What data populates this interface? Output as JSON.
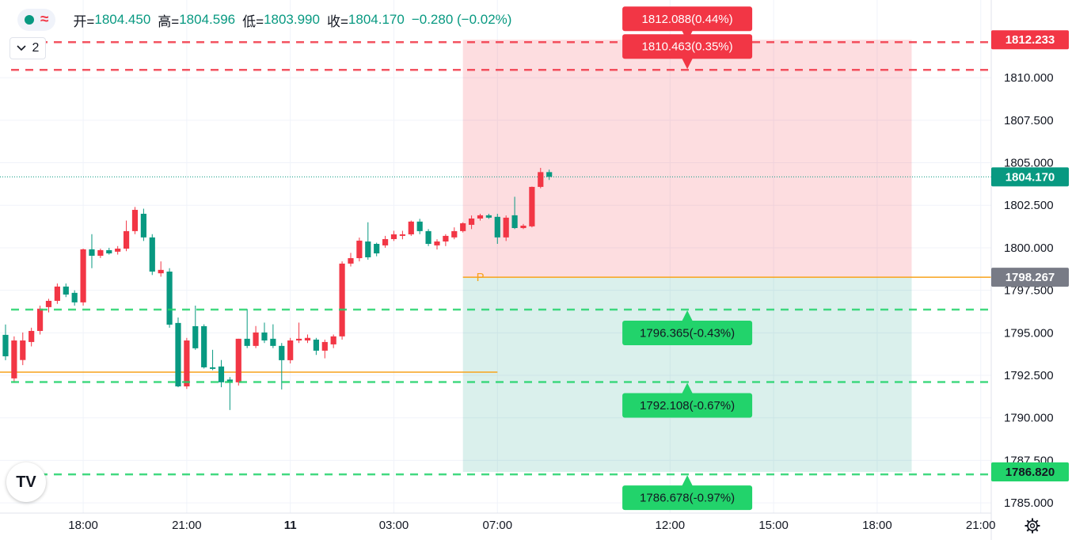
{
  "chart_data": {
    "type": "candlestick",
    "open": [
      1794.88,
      1792.32,
      1793.4,
      1794.46,
      1795.11,
      1796.51,
      1796.88,
      1797.72,
      1797.35,
      1796.79,
      1799.91,
      1799.53,
      1799.86,
      1799.77,
      1799.95,
      1800.98,
      1802.0,
      1800.61,
      1798.5,
      1798.6,
      1795.58,
      1791.85,
      1795.39,
      1795.39,
      1792.97,
      1793.02,
      1792.25,
      1792.09,
      1794.65,
      1794.23,
      1795.02,
      1794.65,
      1794.23,
      1793.39,
      1794.55,
      1794.55,
      1794.6,
      1793.95,
      1794.32,
      1794.79,
      1799.07,
      1799.39,
      1800.37,
      1800.23,
      1800.14,
      1800.51,
      1800.7,
      1800.79,
      1801.54,
      1800.98,
      1800.14,
      1800.37,
      1800.61,
      1800.98,
      1801.35,
      1801.72,
      1801.91,
      1801.82,
      1800.61,
      1801.91,
      1801.16,
      1801.26,
      1803.58,
      1804.45
    ],
    "high": [
      1795.49,
      1794.79,
      1795.02,
      1795.3,
      1796.6,
      1797.0,
      1797.9,
      1797.9,
      1797.5,
      1799.95,
      1800.8,
      1799.95,
      1800.0,
      1800.1,
      1801.6,
      1802.4,
      1802.3,
      1800.8,
      1799.2,
      1798.8,
      1795.9,
      1794.7,
      1796.6,
      1795.5,
      1794.0,
      1793.4,
      1792.4,
      1794.65,
      1796.4,
      1795.4,
      1795.6,
      1795.5,
      1794.4,
      1794.7,
      1795.6,
      1794.9,
      1794.7,
      1794.6,
      1794.9,
      1799.2,
      1799.7,
      1800.6,
      1801.5,
      1800.3,
      1800.7,
      1801.0,
      1801.0,
      1801.6,
      1801.7,
      1801.1,
      1800.5,
      1800.8,
      1801.2,
      1801.5,
      1801.9,
      1802.0,
      1802.0,
      1802.0,
      1801.9,
      1803.0,
      1801.4,
      1803.6,
      1804.7,
      1804.596
    ],
    "low": [
      1793.39,
      1792.09,
      1793.1,
      1794.2,
      1794.9,
      1796.2,
      1796.7,
      1797.1,
      1796.6,
      1796.6,
      1798.8,
      1799.4,
      1799.6,
      1799.6,
      1799.8,
      1800.8,
      1800.4,
      1798.4,
      1798.3,
      1795.3,
      1791.8,
      1791.7,
      1794.0,
      1792.9,
      1792.8,
      1791.8,
      1790.46,
      1791.9,
      1794.1,
      1794.1,
      1794.4,
      1794.1,
      1791.67,
      1793.2,
      1794.4,
      1794.4,
      1793.7,
      1793.5,
      1794.1,
      1794.6,
      1798.9,
      1799.2,
      1799.3,
      1799.5,
      1800.0,
      1800.4,
      1800.5,
      1800.7,
      1800.8,
      1800.1,
      1799.9,
      1800.1,
      1800.5,
      1800.9,
      1801.1,
      1801.6,
      1801.7,
      1800.23,
      1800.4,
      1801.1,
      1801.1,
      1801.2,
      1803.5,
      1803.99
    ],
    "close": [
      1793.62,
      1794.55,
      1794.55,
      1795.11,
      1796.42,
      1796.88,
      1797.72,
      1797.25,
      1796.79,
      1799.91,
      1799.53,
      1799.86,
      1799.67,
      1799.95,
      1800.98,
      1802.23,
      1800.61,
      1798.6,
      1798.7,
      1795.48,
      1791.85,
      1794.55,
      1794.09,
      1792.97,
      1792.88,
      1792.09,
      1792.09,
      1794.65,
      1794.23,
      1795.02,
      1794.55,
      1794.23,
      1793.39,
      1794.55,
      1794.65,
      1794.7,
      1793.95,
      1794.46,
      1794.79,
      1799.07,
      1799.39,
      1800.42,
      1799.44,
      1799.67,
      1800.51,
      1800.79,
      1800.79,
      1801.54,
      1800.98,
      1800.23,
      1800.37,
      1800.7,
      1800.98,
      1801.44,
      1801.72,
      1801.91,
      1801.77,
      1800.61,
      1801.77,
      1801.16,
      1801.3,
      1803.58,
      1804.45,
      1804.17
    ],
    "up_color": "#f23645",
    "down_color": "#089981",
    "xlim": [
      -0.64,
      114.22
    ],
    "ylim": [
      1784.4,
      1814.57
    ],
    "xticks": [
      {
        "value": 9,
        "label": "18:00"
      },
      {
        "value": 21,
        "label": "21:00"
      },
      {
        "value": 33,
        "label": "11"
      },
      {
        "value": 45,
        "label": "03:00"
      },
      {
        "value": 57,
        "label": "07:00"
      },
      {
        "value": 77,
        "label": "12:00"
      },
      {
        "value": 89,
        "label": "15:00"
      },
      {
        "value": 101,
        "label": "18:00"
      },
      {
        "value": 113,
        "label": "21:00"
      }
    ],
    "yticks": [
      {
        "value": 1785,
        "label": "1785.000"
      },
      {
        "value": 1787.5,
        "label": "1787.500"
      },
      {
        "value": 1790,
        "label": "1790.000"
      },
      {
        "value": 1792.5,
        "label": "1792.500"
      },
      {
        "value": 1795,
        "label": "1795.000"
      },
      {
        "value": 1797.5,
        "label": "1797.500"
      },
      {
        "value": 1800,
        "label": "1800.000"
      },
      {
        "value": 1802.5,
        "label": "1802.500"
      },
      {
        "value": 1805,
        "label": "1805.000"
      },
      {
        "value": 1807.5,
        "label": "1807.500"
      },
      {
        "value": 1810,
        "label": "1810.000"
      }
    ],
    "grid": true,
    "legend": {
      "items": [
        {
          "label": "开=",
          "value": "1804.450"
        },
        {
          "label": "高=",
          "value": "1804.596"
        },
        {
          "label": "低=",
          "value": "1803.990"
        },
        {
          "label": "收=",
          "value": "1804.170"
        }
      ],
      "change": "−0.280 (−0.02%)"
    },
    "indicators": "2",
    "levels": [
      {
        "value": 1812.088,
        "label": "1812.088(0.44%)",
        "color": "#f23645"
      },
      {
        "value": 1810.463,
        "label": "1810.463(0.35%)",
        "color": "#f23645"
      },
      {
        "value": 1796.365,
        "label": "1796.365(-0.43%)",
        "color": "#22d36b"
      },
      {
        "value": 1792.108,
        "label": "1792.108(-0.67%)",
        "color": "#22d36b"
      },
      {
        "value": 1786.678,
        "label": "1786.678(-0.97%)",
        "color": "#22d36b"
      }
    ],
    "position": {
      "start": 53,
      "end": 105,
      "marker": "P",
      "top": {
        "value": 1812.233,
        "label": "1812.233",
        "color": "#f23645"
      },
      "entry": {
        "value": 1798.267,
        "label": "1798.267",
        "color": "#787b86"
      },
      "bottom": {
        "value": 1786.82,
        "label": "1786.820",
        "color": "#22d36b"
      }
    },
    "last_price": {
      "value": 1804.17,
      "label": "1804.170",
      "color": "#089981"
    },
    "hline": {
      "value": 1792.69,
      "end": 57,
      "color": "#f7a21b"
    }
  }
}
